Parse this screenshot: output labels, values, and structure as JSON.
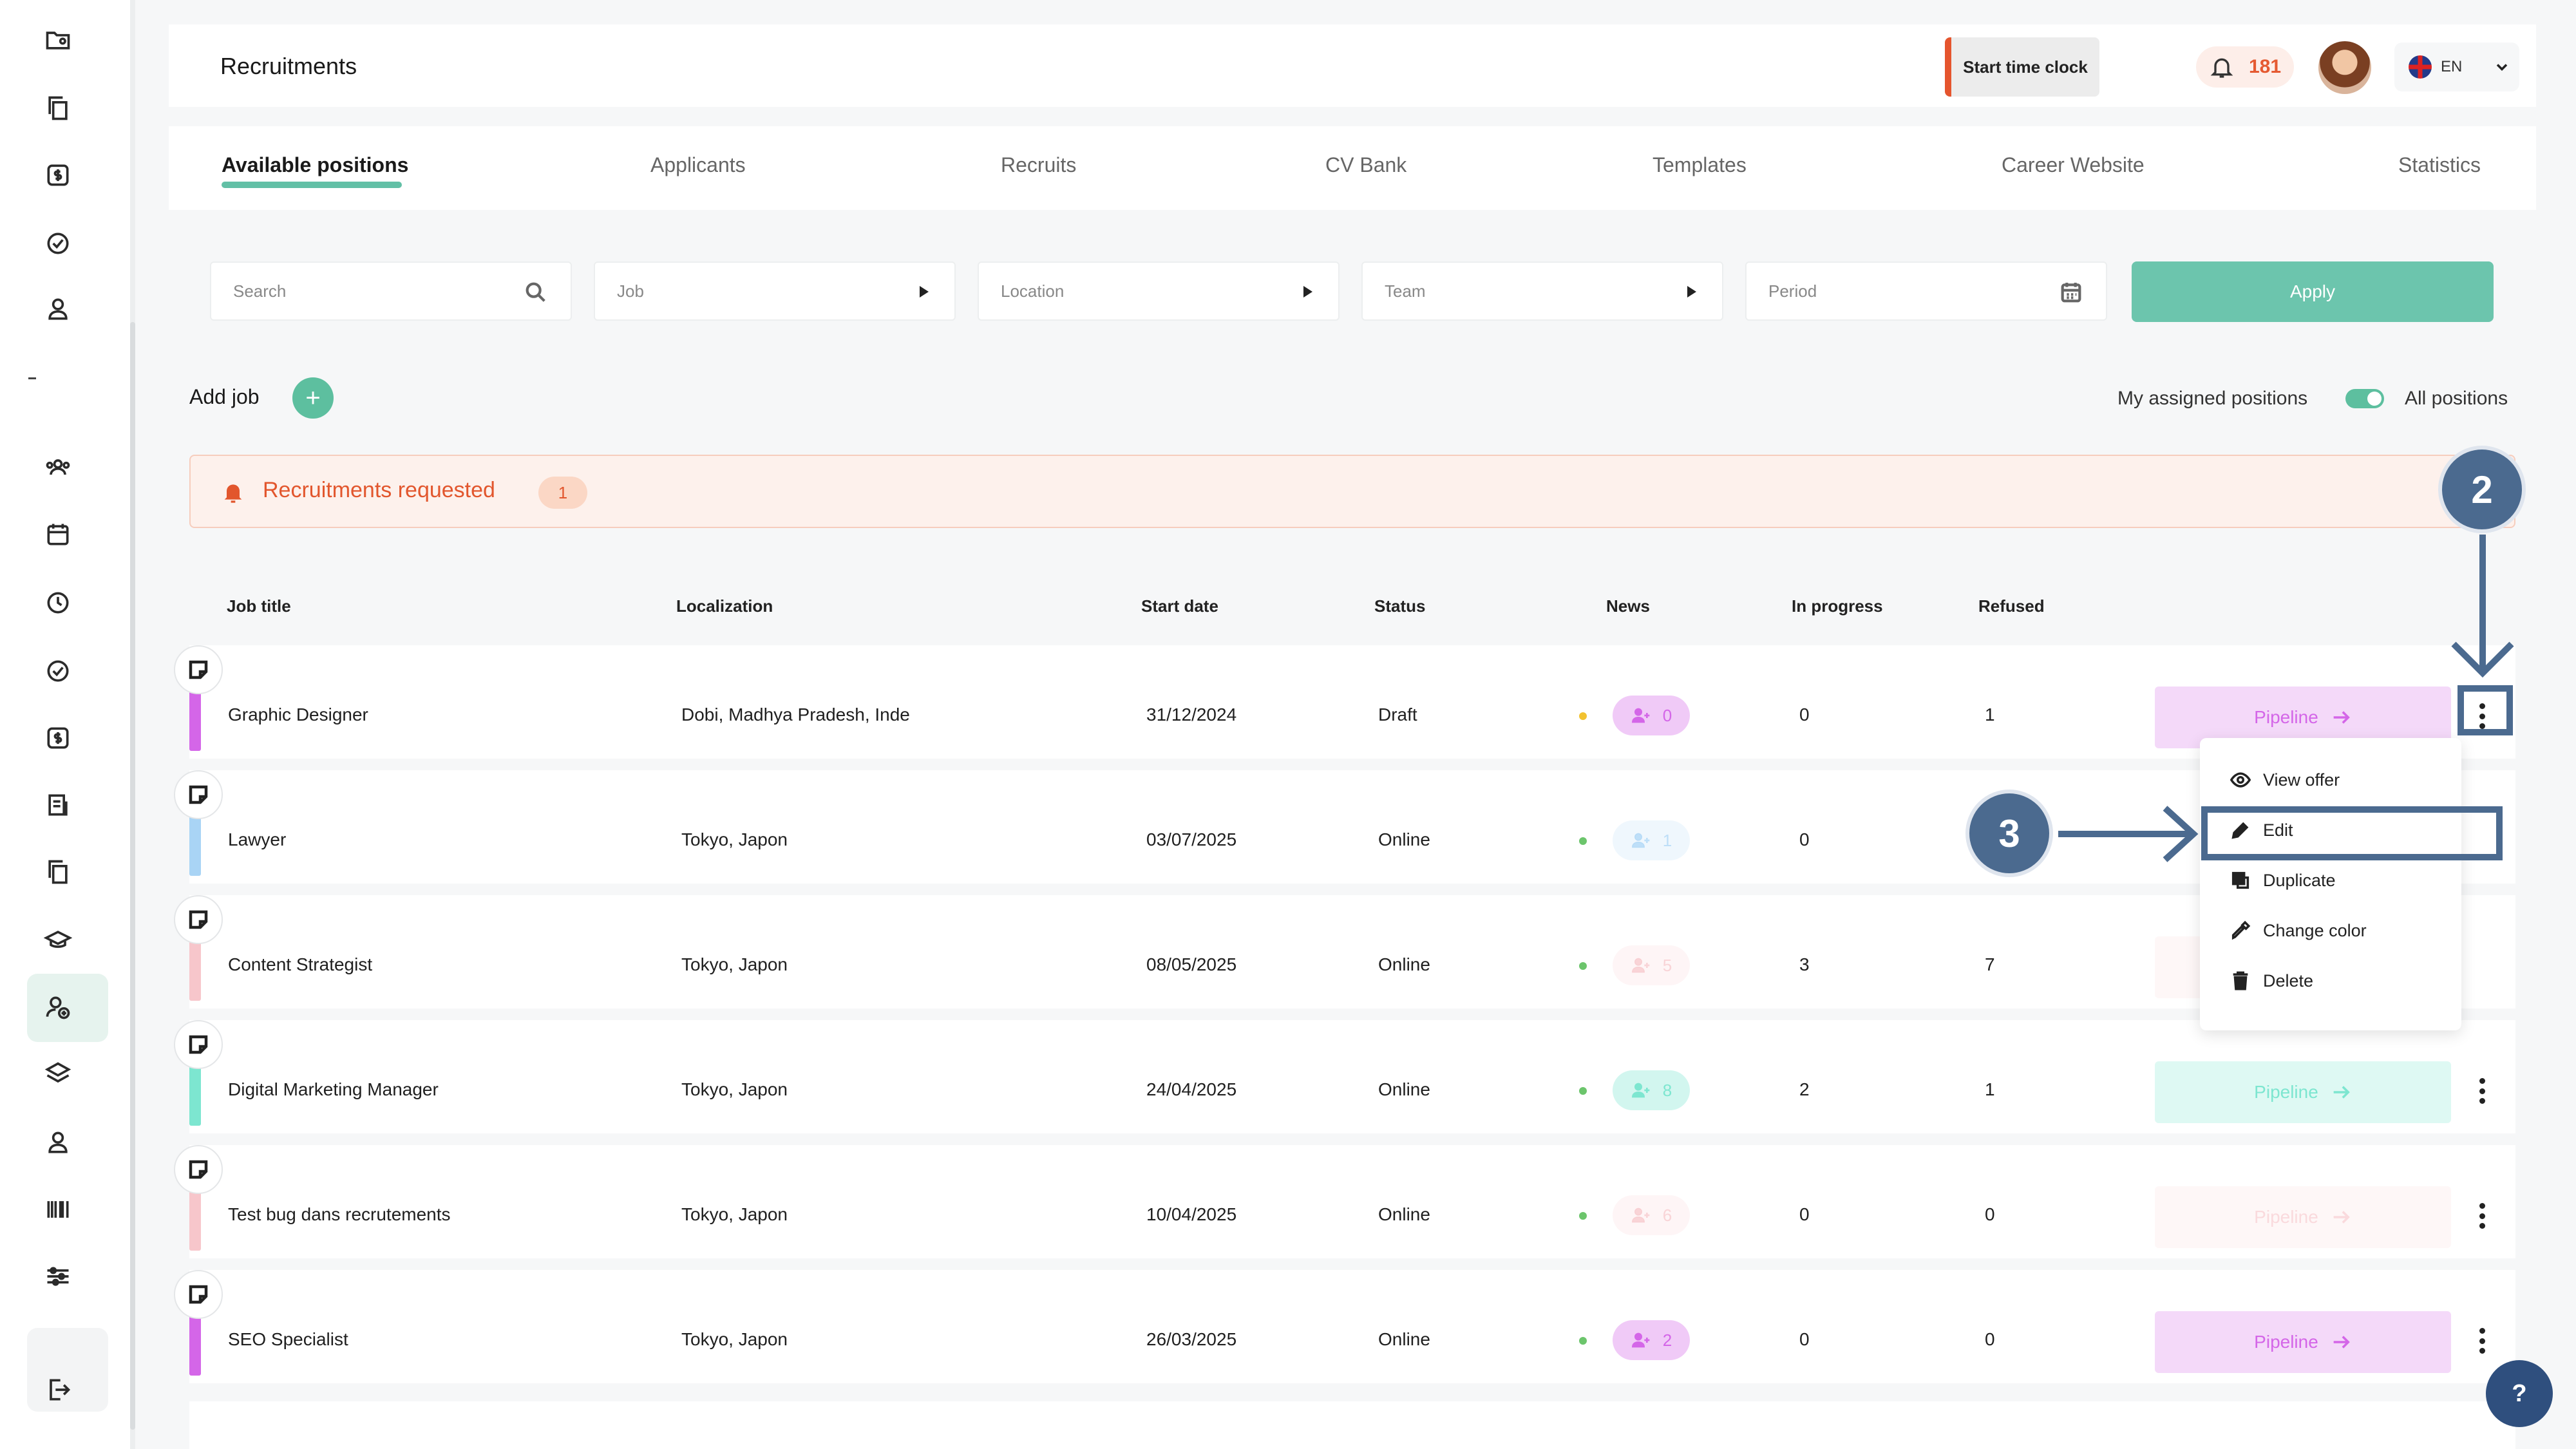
{
  "header": {
    "title": "Recruitments",
    "time_clock": "Start time clock",
    "notifications_count": "181",
    "language": "EN"
  },
  "tabs": [
    {
      "label": "Available positions",
      "active": true
    },
    {
      "label": "Applicants"
    },
    {
      "label": "Recruits"
    },
    {
      "label": "CV Bank"
    },
    {
      "label": "Templates"
    },
    {
      "label": "Career Website"
    },
    {
      "label": "Statistics"
    }
  ],
  "filters": {
    "search_placeholder": "Search",
    "job": "Job",
    "location": "Location",
    "team": "Team",
    "period": "Period",
    "apply": "Apply"
  },
  "toolbar": {
    "add_job": "Add job",
    "my_assigned": "My assigned positions",
    "all_positions": "All positions"
  },
  "requested": {
    "label": "Recruitments requested",
    "count": "1"
  },
  "table": {
    "headers": [
      "Job title",
      "Localization",
      "Start date",
      "Status",
      "News",
      "In progress",
      "Refused"
    ],
    "rows": [
      {
        "title": "Graphic Designer",
        "location": "Dobi, Madhya Pradesh, Inde",
        "start": "31/12/2024",
        "status": "Draft",
        "news": "0",
        "in_progress": "0",
        "refused": "1",
        "pipeline": "Pipeline",
        "color": "#d466e8",
        "dot": "#f2c230"
      },
      {
        "title": "Lawyer",
        "location": "Tokyo, Japon",
        "start": "03/07/2025",
        "status": "Online",
        "news": "1",
        "in_progress": "0",
        "refused": "",
        "pipeline": "",
        "color": "#a9d4f5",
        "dot": "#6cc56c"
      },
      {
        "title": "Content Strategist",
        "location": "Tokyo, Japon",
        "start": "08/05/2025",
        "status": "Online",
        "news": "5",
        "in_progress": "3",
        "refused": "7",
        "pipeline": "",
        "color": "#f7c6cb",
        "dot": "#6cc56c"
      },
      {
        "title": "Digital Marketing Manager",
        "location": "Tokyo, Japon",
        "start": "24/04/2025",
        "status": "Online",
        "news": "8",
        "in_progress": "2",
        "refused": "1",
        "pipeline": "Pipeline",
        "color": "#7de6d0",
        "dot": "#6cc56c"
      },
      {
        "title": "Test bug dans recrutements",
        "location": "Tokyo, Japon",
        "start": "10/04/2025",
        "status": "Online",
        "news": "6",
        "in_progress": "0",
        "refused": "0",
        "pipeline": "Pipeline",
        "color": "#f7c6cb",
        "dot": "#6cc56c"
      },
      {
        "title": "SEO Specialist",
        "location": "Tokyo, Japon",
        "start": "26/03/2025",
        "status": "Online",
        "news": "2",
        "in_progress": "0",
        "refused": "0",
        "pipeline": "Pipeline",
        "color": "#d466e8",
        "dot": "#6cc56c"
      }
    ]
  },
  "context_menu": {
    "items": [
      "View offer",
      "Edit",
      "Duplicate",
      "Change color",
      "Delete"
    ]
  },
  "annotations": {
    "step2": "2",
    "step3": "3"
  },
  "help": "?"
}
